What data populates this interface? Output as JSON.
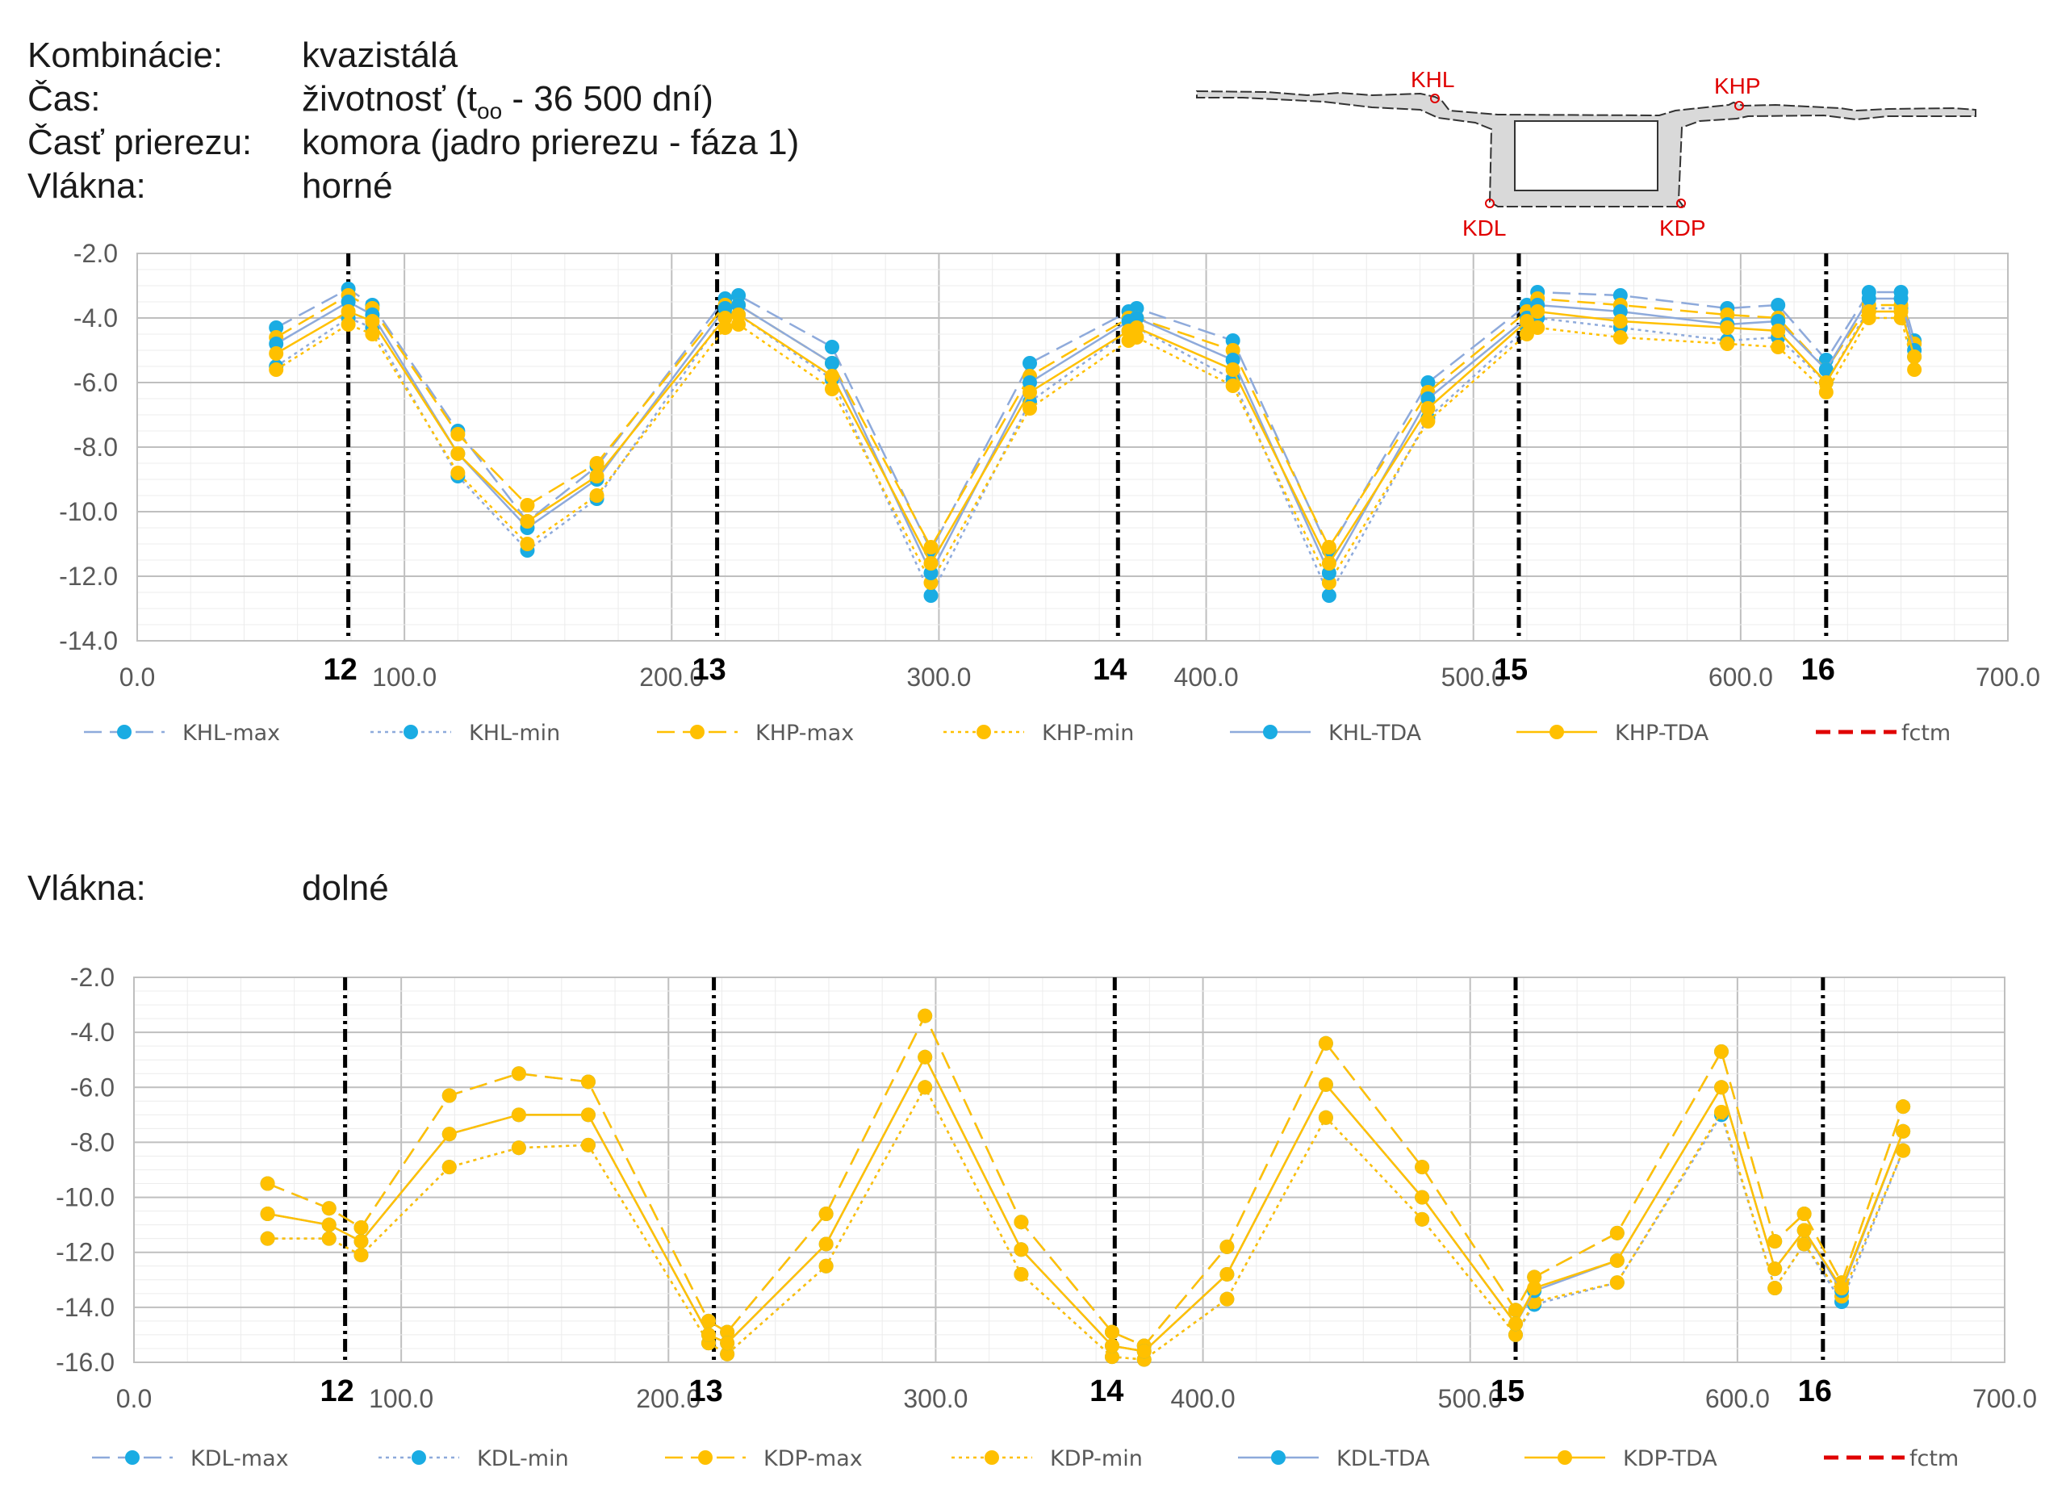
{
  "header": {
    "combination_label": "Kombinácie:",
    "combination_value": "kvazistálá",
    "time_label": "Čas:",
    "time_value_prefix": "životnosť (t",
    "time_value_sub": "oo",
    "time_value_suffix": " - 36 500 dní)",
    "part_label": "Časť prierezu:",
    "part_value": "komora (jadro prierezu - fáza 1)",
    "fibers_top_label": "Vlákna:",
    "fibers_top_value": "horné",
    "fibers_bottom_label": "Vlákna:",
    "fibers_bottom_value": "dolné"
  },
  "cross_section": {
    "points": [
      "KHL",
      "KHP",
      "KDL",
      "KDP"
    ],
    "label_color": "#e00000"
  },
  "colors": {
    "blue": "#1aace3",
    "yellow": "#ffc000",
    "blue_line": "#8eaadb",
    "red": "#e00000"
  },
  "chart_data": [
    {
      "type": "line",
      "title": "horné",
      "xlim": [
        0,
        700
      ],
      "ylim": [
        -14,
        -2
      ],
      "xticks": [
        "0.0",
        "100.0",
        "200.0",
        "300.0",
        "400.0",
        "500.0",
        "600.0",
        "700.0"
      ],
      "yticks": [
        "-2.0",
        "-4.0",
        "-6.0",
        "-8.0",
        "-10.0",
        "-12.0",
        "-14.0"
      ],
      "supports": [
        {
          "x": 79,
          "label": "12"
        },
        {
          "x": 217,
          "label": "13"
        },
        {
          "x": 367,
          "label": "14"
        },
        {
          "x": 517,
          "label": "15"
        },
        {
          "x": 632,
          "label": "16"
        }
      ],
      "legend": [
        "KHL-max",
        "KHL-min",
        "KHP-max",
        "KHP-min",
        "KHL-TDA",
        "KHP-TDA",
        "fctm"
      ],
      "series": [
        {
          "name": "KHL-max",
          "color": "blue",
          "dash": "long",
          "x": [
            52,
            79,
            88,
            120,
            146,
            172,
            220,
            225,
            260,
            297,
            334,
            371,
            374,
            410,
            446,
            483,
            520,
            524,
            555,
            595,
            614,
            632,
            648,
            660,
            665
          ],
          "y": [
            -4.3,
            -3.1,
            -3.6,
            -7.5,
            -10.3,
            -8.6,
            -3.4,
            -3.3,
            -4.9,
            -11.2,
            -5.4,
            -3.8,
            -3.7,
            -4.7,
            -11.2,
            -6.0,
            -3.6,
            -3.2,
            -3.3,
            -3.7,
            -3.6,
            -5.3,
            -3.2,
            -3.2,
            -4.7
          ]
        },
        {
          "name": "KHL-min",
          "color": "blue",
          "dash": "dot",
          "x": [
            52,
            79,
            88,
            120,
            146,
            172,
            220,
            225,
            260,
            297,
            334,
            371,
            374,
            410,
            446,
            483,
            520,
            524,
            555,
            595,
            614,
            632,
            648,
            660,
            665
          ],
          "y": [
            -5.5,
            -4.0,
            -4.3,
            -8.9,
            -11.2,
            -9.6,
            -3.9,
            -3.9,
            -5.9,
            -12.6,
            -6.6,
            -4.4,
            -4.3,
            -5.9,
            -12.6,
            -7.1,
            -4.3,
            -4.0,
            -4.3,
            -4.7,
            -4.6,
            -6.0,
            -3.7,
            -3.7,
            -5.2
          ]
        },
        {
          "name": "KHP-max",
          "color": "yellow",
          "dash": "long",
          "x": [
            52,
            79,
            88,
            120,
            146,
            172,
            220,
            225,
            260,
            297,
            334,
            371,
            374,
            410,
            446,
            483,
            520,
            524,
            555,
            595,
            614,
            632,
            648,
            660,
            665
          ],
          "y": [
            -4.6,
            -3.3,
            -3.7,
            -7.6,
            -9.8,
            -8.5,
            -3.6,
            -3.6,
            -5.4,
            -11.1,
            -5.8,
            -4.0,
            -4.0,
            -5.0,
            -11.1,
            -6.3,
            -3.8,
            -3.4,
            -3.6,
            -3.9,
            -4.0,
            -5.6,
            -3.6,
            -3.6,
            -4.8
          ]
        },
        {
          "name": "KHP-min",
          "color": "yellow",
          "dash": "dot",
          "x": [
            52,
            79,
            88,
            120,
            146,
            172,
            220,
            225,
            260,
            297,
            334,
            371,
            374,
            410,
            446,
            483,
            520,
            524,
            555,
            595,
            614,
            632,
            648,
            660,
            665
          ],
          "y": [
            -5.6,
            -4.2,
            -4.5,
            -8.8,
            -11.0,
            -9.5,
            -4.3,
            -4.2,
            -6.2,
            -12.2,
            -6.8,
            -4.7,
            -4.6,
            -6.1,
            -12.2,
            -7.2,
            -4.5,
            -4.3,
            -4.6,
            -4.8,
            -4.9,
            -6.3,
            -4.0,
            -4.0,
            -5.6
          ]
        },
        {
          "name": "KHL-TDA",
          "color": "blue",
          "dash": "solid",
          "x": [
            52,
            79,
            88,
            120,
            146,
            172,
            220,
            225,
            260,
            297,
            334,
            371,
            374,
            410,
            446,
            483,
            520,
            524,
            555,
            595,
            614,
            632,
            648,
            660,
            665
          ],
          "y": [
            -4.8,
            -3.5,
            -3.9,
            -8.2,
            -10.5,
            -9.0,
            -3.7,
            -3.6,
            -5.4,
            -11.9,
            -6.0,
            -4.1,
            -4.0,
            -5.3,
            -11.9,
            -6.5,
            -4.0,
            -3.6,
            -3.8,
            -4.2,
            -4.1,
            -5.6,
            -3.4,
            -3.4,
            -5.0
          ]
        },
        {
          "name": "KHP-TDA",
          "color": "yellow",
          "dash": "solid",
          "x": [
            52,
            79,
            88,
            120,
            146,
            172,
            220,
            225,
            260,
            297,
            334,
            371,
            374,
            410,
            446,
            483,
            520,
            524,
            555,
            595,
            614,
            632,
            648,
            660,
            665
          ],
          "y": [
            -5.1,
            -3.8,
            -4.1,
            -8.2,
            -10.3,
            -8.9,
            -4.0,
            -3.9,
            -5.8,
            -11.6,
            -6.3,
            -4.4,
            -4.3,
            -5.6,
            -11.6,
            -6.8,
            -4.1,
            -3.8,
            -4.1,
            -4.3,
            -4.4,
            -6.0,
            -3.8,
            -3.8,
            -5.2
          ]
        }
      ]
    },
    {
      "type": "line",
      "title": "dolné",
      "xlim": [
        0,
        700
      ],
      "ylim": [
        -16,
        -2
      ],
      "xticks": [
        "0.0",
        "100.0",
        "200.0",
        "300.0",
        "400.0",
        "500.0",
        "600.0",
        "700.0"
      ],
      "yticks": [
        "-2.0",
        "-4.0",
        "-6.0",
        "-8.0",
        "-10.0",
        "-12.0",
        "-14.0",
        "-16.0"
      ],
      "supports": [
        {
          "x": 79,
          "label": "12"
        },
        {
          "x": 217,
          "label": "13"
        },
        {
          "x": 367,
          "label": "14"
        },
        {
          "x": 517,
          "label": "15"
        },
        {
          "x": 632,
          "label": "16"
        }
      ],
      "legend": [
        "KDL-max",
        "KDL-min",
        "KDP-max",
        "KDP-min",
        "KDL-TDA",
        "KDP-TDA",
        "fctm"
      ],
      "series": [
        {
          "name": "KDL-max",
          "color": "blue",
          "dash": "long",
          "x": [
            50,
            73,
            85,
            118,
            144,
            170,
            215,
            222,
            259,
            296,
            332,
            366,
            378,
            409,
            446,
            482,
            517,
            524,
            555,
            594,
            614,
            625,
            639,
            662
          ],
          "y": [
            -9.5,
            -10.4,
            -11.1,
            -6.3,
            -5.5,
            -5.8,
            -14.5,
            -14.9,
            -10.6,
            -3.4,
            -10.9,
            -14.9,
            -15.4,
            -11.8,
            -4.4,
            -8.9,
            -14.1,
            -12.9,
            -11.3,
            -4.7,
            -11.6,
            -10.6,
            -13.1,
            -6.7
          ]
        },
        {
          "name": "KDL-min",
          "color": "blue",
          "dash": "dot",
          "x": [
            50,
            73,
            85,
            118,
            144,
            170,
            215,
            222,
            259,
            296,
            332,
            366,
            378,
            409,
            446,
            482,
            517,
            524,
            555,
            594,
            614,
            625,
            639,
            662
          ],
          "y": [
            -11.5,
            -11.5,
            -12.1,
            -8.9,
            -8.2,
            -8.1,
            -15.3,
            -15.7,
            -12.5,
            -6.0,
            -12.8,
            -15.8,
            -15.9,
            -13.7,
            -7.1,
            -10.8,
            -15.0,
            -13.9,
            -13.1,
            -7.0,
            -13.3,
            -11.7,
            -13.8,
            -8.3
          ]
        },
        {
          "name": "KDP-max",
          "color": "yellow",
          "dash": "long",
          "x": [
            50,
            73,
            85,
            118,
            144,
            170,
            215,
            222,
            259,
            296,
            332,
            366,
            378,
            409,
            446,
            482,
            517,
            524,
            555,
            594,
            614,
            625,
            639,
            662
          ],
          "y": [
            -9.5,
            -10.4,
            -11.1,
            -6.3,
            -5.5,
            -5.8,
            -14.5,
            -14.9,
            -10.6,
            -3.4,
            -10.9,
            -14.9,
            -15.4,
            -11.8,
            -4.4,
            -8.9,
            -14.1,
            -12.9,
            -11.3,
            -4.7,
            -11.6,
            -10.6,
            -13.1,
            -6.7
          ]
        },
        {
          "name": "KDP-min",
          "color": "yellow",
          "dash": "dot",
          "x": [
            50,
            73,
            85,
            118,
            144,
            170,
            215,
            222,
            259,
            296,
            332,
            366,
            378,
            409,
            446,
            482,
            517,
            524,
            555,
            594,
            614,
            625,
            639,
            662
          ],
          "y": [
            -11.5,
            -11.5,
            -12.1,
            -8.9,
            -8.2,
            -8.1,
            -15.3,
            -15.7,
            -12.5,
            -6.0,
            -12.8,
            -15.8,
            -15.9,
            -13.7,
            -7.1,
            -10.8,
            -15.0,
            -13.8,
            -13.1,
            -6.9,
            -13.3,
            -11.7,
            -13.6,
            -8.3
          ]
        },
        {
          "name": "KDL-TDA",
          "color": "blue",
          "dash": "solid",
          "x": [
            50,
            73,
            85,
            118,
            144,
            170,
            215,
            222,
            259,
            296,
            332,
            366,
            378,
            409,
            446,
            482,
            517,
            524,
            555,
            594,
            614,
            625,
            639,
            662
          ],
          "y": [
            -10.6,
            -11.0,
            -11.6,
            -7.7,
            -7.0,
            -7.0,
            -15.0,
            -15.3,
            -11.7,
            -4.9,
            -11.9,
            -15.4,
            -15.6,
            -12.8,
            -5.9,
            -10.0,
            -14.6,
            -13.4,
            -12.3,
            -6.0,
            -12.6,
            -11.2,
            -13.4,
            -7.6
          ]
        },
        {
          "name": "KDP-TDA",
          "color": "yellow",
          "dash": "solid",
          "x": [
            50,
            73,
            85,
            118,
            144,
            170,
            215,
            222,
            259,
            296,
            332,
            366,
            378,
            409,
            446,
            482,
            517,
            524,
            555,
            594,
            614,
            625,
            639,
            662
          ],
          "y": [
            -10.6,
            -11.0,
            -11.6,
            -7.7,
            -7.0,
            -7.0,
            -15.0,
            -15.3,
            -11.7,
            -4.9,
            -11.9,
            -15.4,
            -15.6,
            -12.8,
            -5.9,
            -10.0,
            -14.6,
            -13.3,
            -12.3,
            -6.0,
            -12.6,
            -11.2,
            -13.3,
            -7.6
          ]
        }
      ]
    }
  ]
}
